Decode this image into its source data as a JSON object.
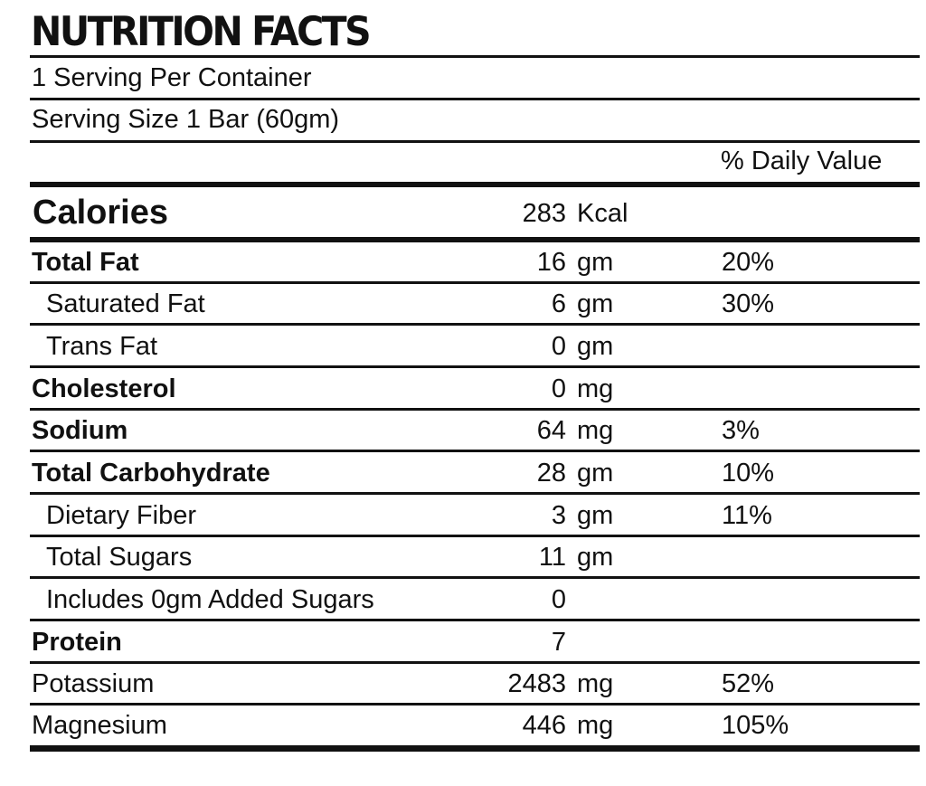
{
  "title": "NUTRITION FACTS",
  "servings_per_container": "1 Serving Per Container",
  "serving_size": "Serving Size 1 Bar (60gm)",
  "daily_value_header": "% Daily Value",
  "calories": {
    "label": "Calories",
    "amount": "283",
    "unit": "Kcal",
    "dv": ""
  },
  "nutrients": [
    {
      "name": "Total Fat",
      "amount": "16",
      "unit": "gm",
      "dv": "20%"
    },
    {
      "name": "Saturated Fat",
      "amount": "6",
      "unit": "gm",
      "dv": "30%"
    },
    {
      "name": "Trans Fat",
      "amount": "0",
      "unit": "gm",
      "dv": ""
    },
    {
      "name": "Cholesterol",
      "amount": "0",
      "unit": "mg",
      "dv": ""
    },
    {
      "name": "Sodium",
      "amount": "64",
      "unit": "mg",
      "dv": "3%"
    },
    {
      "name": "Total Carbohydrate",
      "amount": "28",
      "unit": "gm",
      "dv": "10%"
    },
    {
      "name": "Dietary Fiber",
      "amount": "3",
      "unit": "gm",
      "dv": "11%"
    },
    {
      "name": "Total Sugars",
      "amount": "11",
      "unit": "gm",
      "dv": ""
    },
    {
      "name": "Includes 0gm Added Sugars",
      "amount": "0",
      "unit": "",
      "dv": ""
    },
    {
      "name": "Protein",
      "amount": "7",
      "unit": "",
      "dv": ""
    },
    {
      "name": "Potassium",
      "amount": "2483",
      "unit": "mg",
      "dv": "52%"
    },
    {
      "name": "Magnesium",
      "amount": "446",
      "unit": "mg",
      "dv": "105%"
    }
  ]
}
